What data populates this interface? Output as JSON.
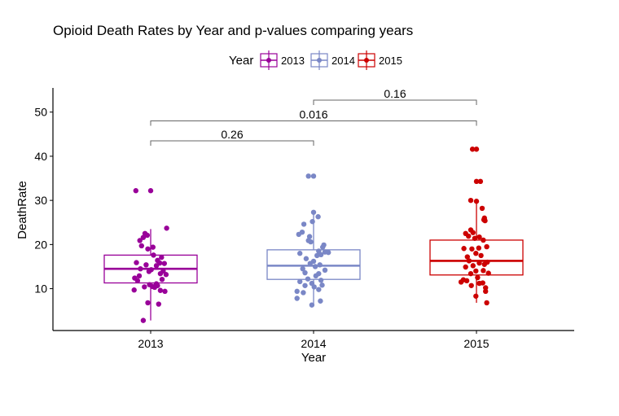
{
  "chart_data": {
    "type": "box",
    "title": "Opioid Death Rates by Year and p-values comparing years",
    "xlabel": "Year",
    "ylabel": "DeathRate",
    "categories": [
      "2013",
      "2014",
      "2015"
    ],
    "ylim": [
      0,
      55
    ],
    "yticks": [
      10,
      20,
      30,
      40,
      50
    ],
    "grid": false,
    "legend": {
      "title": "Year",
      "position": "top",
      "items": [
        "2013",
        "2014",
        "2015"
      ]
    },
    "colors": {
      "2013": "#990099",
      "2014": "#7A87C6",
      "2015": "#CC0000",
      "bracket": "#666666"
    },
    "boxes": [
      {
        "category": "2013",
        "whisker_low": 2.8,
        "q1": 11.3,
        "median": 14.5,
        "q3": 17.6,
        "whisker_high": 23.5
      },
      {
        "category": "2014",
        "whisker_low": 6.3,
        "q1": 12.1,
        "median": 15.2,
        "q3": 18.8,
        "whisker_high": 27.3
      },
      {
        "category": "2015",
        "whisker_low": 6.8,
        "q1": 13.1,
        "median": 16.3,
        "q3": 21.0,
        "whisker_high": 30.0
      }
    ],
    "points": {
      "2013": [
        {
          "x": 2013,
          "y": 32.2,
          "j": -0.26
        },
        {
          "x": 2013,
          "y": 32.2,
          "j": 0.0
        },
        {
          "x": 2013,
          "y": 23.7,
          "j": 0.28
        },
        {
          "x": 2013,
          "y": 22.5,
          "j": -0.1
        },
        {
          "x": 2013,
          "y": 22.1,
          "j": -0.06
        },
        {
          "x": 2013,
          "y": 21.6,
          "j": -0.13
        },
        {
          "x": 2013,
          "y": 20.9,
          "j": -0.19
        },
        {
          "x": 2013,
          "y": 19.7,
          "j": -0.16
        },
        {
          "x": 2013,
          "y": 19.0,
          "j": -0.05
        },
        {
          "x": 2013,
          "y": 19.4,
          "j": 0.04
        },
        {
          "x": 2013,
          "y": 17.6,
          "j": 0.05
        },
        {
          "x": 2013,
          "y": 17.1,
          "j": 0.19
        },
        {
          "x": 2013,
          "y": 16.4,
          "j": 0.12
        },
        {
          "x": 2013,
          "y": 15.9,
          "j": -0.25
        },
        {
          "x": 2013,
          "y": 15.7,
          "j": 0.24
        },
        {
          "x": 2013,
          "y": 15.8,
          "j": 0.16
        },
        {
          "x": 2013,
          "y": 15.4,
          "j": -0.08
        },
        {
          "x": 2013,
          "y": 15.2,
          "j": 0.1
        },
        {
          "x": 2013,
          "y": 14.5,
          "j": -0.18
        },
        {
          "x": 2013,
          "y": 14.3,
          "j": 0.01
        },
        {
          "x": 2013,
          "y": 14.0,
          "j": 0.22
        },
        {
          "x": 2013,
          "y": 13.9,
          "j": -0.03
        },
        {
          "x": 2013,
          "y": 13.4,
          "j": 0.17
        },
        {
          "x": 2013,
          "y": 13.2,
          "j": 0.27
        },
        {
          "x": 2013,
          "y": 12.9,
          "j": -0.2
        },
        {
          "x": 2013,
          "y": 12.4,
          "j": -0.28
        },
        {
          "x": 2013,
          "y": 12.1,
          "j": 0.2
        },
        {
          "x": 2013,
          "y": 11.8,
          "j": -0.23
        },
        {
          "x": 2013,
          "y": 11.1,
          "j": 0.1
        },
        {
          "x": 2013,
          "y": 10.9,
          "j": -0.02
        },
        {
          "x": 2013,
          "y": 10.7,
          "j": 0.12
        },
        {
          "x": 2013,
          "y": 10.5,
          "j": 0.03
        },
        {
          "x": 2013,
          "y": 10.4,
          "j": -0.11
        },
        {
          "x": 2013,
          "y": 10.3,
          "j": 0.07
        },
        {
          "x": 2013,
          "y": 9.7,
          "j": -0.29
        },
        {
          "x": 2013,
          "y": 9.6,
          "j": 0.17
        },
        {
          "x": 2013,
          "y": 9.4,
          "j": 0.25
        },
        {
          "x": 2013,
          "y": 6.8,
          "j": -0.05
        },
        {
          "x": 2013,
          "y": 6.5,
          "j": 0.14
        },
        {
          "x": 2013,
          "y": 2.8,
          "j": -0.13
        }
      ],
      "2014": [
        {
          "x": 2014,
          "y": 35.5,
          "j": -0.09
        },
        {
          "x": 2014,
          "y": 35.5,
          "j": 0.0
        },
        {
          "x": 2014,
          "y": 27.3,
          "j": 0.0
        },
        {
          "x": 2014,
          "y": 26.3,
          "j": 0.08
        },
        {
          "x": 2014,
          "y": 25.2,
          "j": -0.02
        },
        {
          "x": 2014,
          "y": 24.6,
          "j": -0.17
        },
        {
          "x": 2014,
          "y": 22.8,
          "j": -0.2
        },
        {
          "x": 2014,
          "y": 22.3,
          "j": -0.26
        },
        {
          "x": 2014,
          "y": 21.8,
          "j": -0.07
        },
        {
          "x": 2014,
          "y": 20.9,
          "j": -0.09
        },
        {
          "x": 2014,
          "y": 20.6,
          "j": -0.05
        },
        {
          "x": 2014,
          "y": 19.9,
          "j": 0.18
        },
        {
          "x": 2014,
          "y": 19.4,
          "j": 0.16
        },
        {
          "x": 2014,
          "y": 18.5,
          "j": 0.09
        },
        {
          "x": 2014,
          "y": 18.3,
          "j": 0.2
        },
        {
          "x": 2014,
          "y": 18.2,
          "j": 0.26
        },
        {
          "x": 2014,
          "y": 18.0,
          "j": -0.24
        },
        {
          "x": 2014,
          "y": 17.7,
          "j": 0.13
        },
        {
          "x": 2014,
          "y": 17.5,
          "j": 0.06
        },
        {
          "x": 2014,
          "y": 16.8,
          "j": -0.13
        },
        {
          "x": 2014,
          "y": 16.2,
          "j": 0.0
        },
        {
          "x": 2014,
          "y": 15.7,
          "j": -0.06
        },
        {
          "x": 2014,
          "y": 15.4,
          "j": 0.11
        },
        {
          "x": 2014,
          "y": 15.0,
          "j": 0.03
        },
        {
          "x": 2014,
          "y": 14.5,
          "j": -0.19
        },
        {
          "x": 2014,
          "y": 14.2,
          "j": 0.2
        },
        {
          "x": 2014,
          "y": 13.6,
          "j": -0.15
        },
        {
          "x": 2014,
          "y": 13.4,
          "j": 0.09
        },
        {
          "x": 2014,
          "y": 12.9,
          "j": 0.04
        },
        {
          "x": 2014,
          "y": 12.2,
          "j": -0.1
        },
        {
          "x": 2014,
          "y": 11.6,
          "j": -0.24
        },
        {
          "x": 2014,
          "y": 11.9,
          "j": 0.13
        },
        {
          "x": 2014,
          "y": 11.2,
          "j": -0.03
        },
        {
          "x": 2014,
          "y": 10.8,
          "j": 0.15
        },
        {
          "x": 2014,
          "y": 10.7,
          "j": -0.15
        },
        {
          "x": 2014,
          "y": 10.4,
          "j": 0.01
        },
        {
          "x": 2014,
          "y": 9.8,
          "j": 0.09
        },
        {
          "x": 2014,
          "y": 9.4,
          "j": -0.29
        },
        {
          "x": 2014,
          "y": 9.1,
          "j": -0.18
        },
        {
          "x": 2014,
          "y": 7.8,
          "j": -0.29
        },
        {
          "x": 2014,
          "y": 7.2,
          "j": 0.12
        },
        {
          "x": 2014,
          "y": 6.3,
          "j": -0.03
        }
      ],
      "2015": [
        {
          "x": 2015,
          "y": 41.6,
          "j": -0.07
        },
        {
          "x": 2015,
          "y": 41.6,
          "j": 0.0
        },
        {
          "x": 2015,
          "y": 34.3,
          "j": 0.0
        },
        {
          "x": 2015,
          "y": 34.3,
          "j": 0.07
        },
        {
          "x": 2015,
          "y": 30.0,
          "j": -0.1
        },
        {
          "x": 2015,
          "y": 29.8,
          "j": 0.0
        },
        {
          "x": 2015,
          "y": 28.2,
          "j": 0.1
        },
        {
          "x": 2015,
          "y": 26.0,
          "j": 0.14
        },
        {
          "x": 2015,
          "y": 25.6,
          "j": 0.13
        },
        {
          "x": 2015,
          "y": 25.4,
          "j": 0.15
        },
        {
          "x": 2015,
          "y": 23.3,
          "j": -0.1
        },
        {
          "x": 2015,
          "y": 22.7,
          "j": -0.06
        },
        {
          "x": 2015,
          "y": 22.5,
          "j": -0.19
        },
        {
          "x": 2015,
          "y": 21.9,
          "j": -0.14
        },
        {
          "x": 2015,
          "y": 21.7,
          "j": 0.05
        },
        {
          "x": 2015,
          "y": 21.4,
          "j": -0.03
        },
        {
          "x": 2015,
          "y": 21.0,
          "j": 0.12
        },
        {
          "x": 2015,
          "y": 19.5,
          "j": 0.18
        },
        {
          "x": 2015,
          "y": 19.1,
          "j": -0.22
        },
        {
          "x": 2015,
          "y": 19.0,
          "j": -0.08
        },
        {
          "x": 2015,
          "y": 19.2,
          "j": 0.04
        },
        {
          "x": 2015,
          "y": 18.0,
          "j": -0.01
        },
        {
          "x": 2015,
          "y": 17.5,
          "j": 0.08
        },
        {
          "x": 2015,
          "y": 17.2,
          "j": -0.16
        },
        {
          "x": 2015,
          "y": 16.3,
          "j": -0.13
        },
        {
          "x": 2015,
          "y": 16.0,
          "j": 0.19
        },
        {
          "x": 2015,
          "y": 15.8,
          "j": 0.05
        },
        {
          "x": 2015,
          "y": 15.5,
          "j": 0.14
        },
        {
          "x": 2015,
          "y": 15.2,
          "j": -0.06
        },
        {
          "x": 2015,
          "y": 14.9,
          "j": -0.19
        },
        {
          "x": 2015,
          "y": 14.1,
          "j": 0.12
        },
        {
          "x": 2015,
          "y": 14.0,
          "j": -0.01
        },
        {
          "x": 2015,
          "y": 13.5,
          "j": 0.21
        },
        {
          "x": 2015,
          "y": 13.4,
          "j": -0.1
        },
        {
          "x": 2015,
          "y": 12.5,
          "j": 0.02
        },
        {
          "x": 2015,
          "y": 12.0,
          "j": -0.23
        },
        {
          "x": 2015,
          "y": 11.8,
          "j": -0.17
        },
        {
          "x": 2015,
          "y": 11.5,
          "j": -0.27
        },
        {
          "x": 2015,
          "y": 11.3,
          "j": 0.11
        },
        {
          "x": 2015,
          "y": 11.2,
          "j": 0.05
        },
        {
          "x": 2015,
          "y": 10.7,
          "j": -0.09
        },
        {
          "x": 2015,
          "y": 10.2,
          "j": 0.16
        },
        {
          "x": 2015,
          "y": 9.4,
          "j": 0.16
        },
        {
          "x": 2015,
          "y": 8.3,
          "j": -0.01
        },
        {
          "x": 2015,
          "y": 6.8,
          "j": 0.18
        }
      ]
    },
    "comparisons": [
      {
        "groups": [
          "2013",
          "2014"
        ],
        "p_value": "0.26",
        "y": 43.5
      },
      {
        "groups": [
          "2013",
          "2015"
        ],
        "p_value": "0.016",
        "y": 48.0
      },
      {
        "groups": [
          "2014",
          "2015"
        ],
        "p_value": "0.16",
        "y": 52.7
      }
    ]
  }
}
